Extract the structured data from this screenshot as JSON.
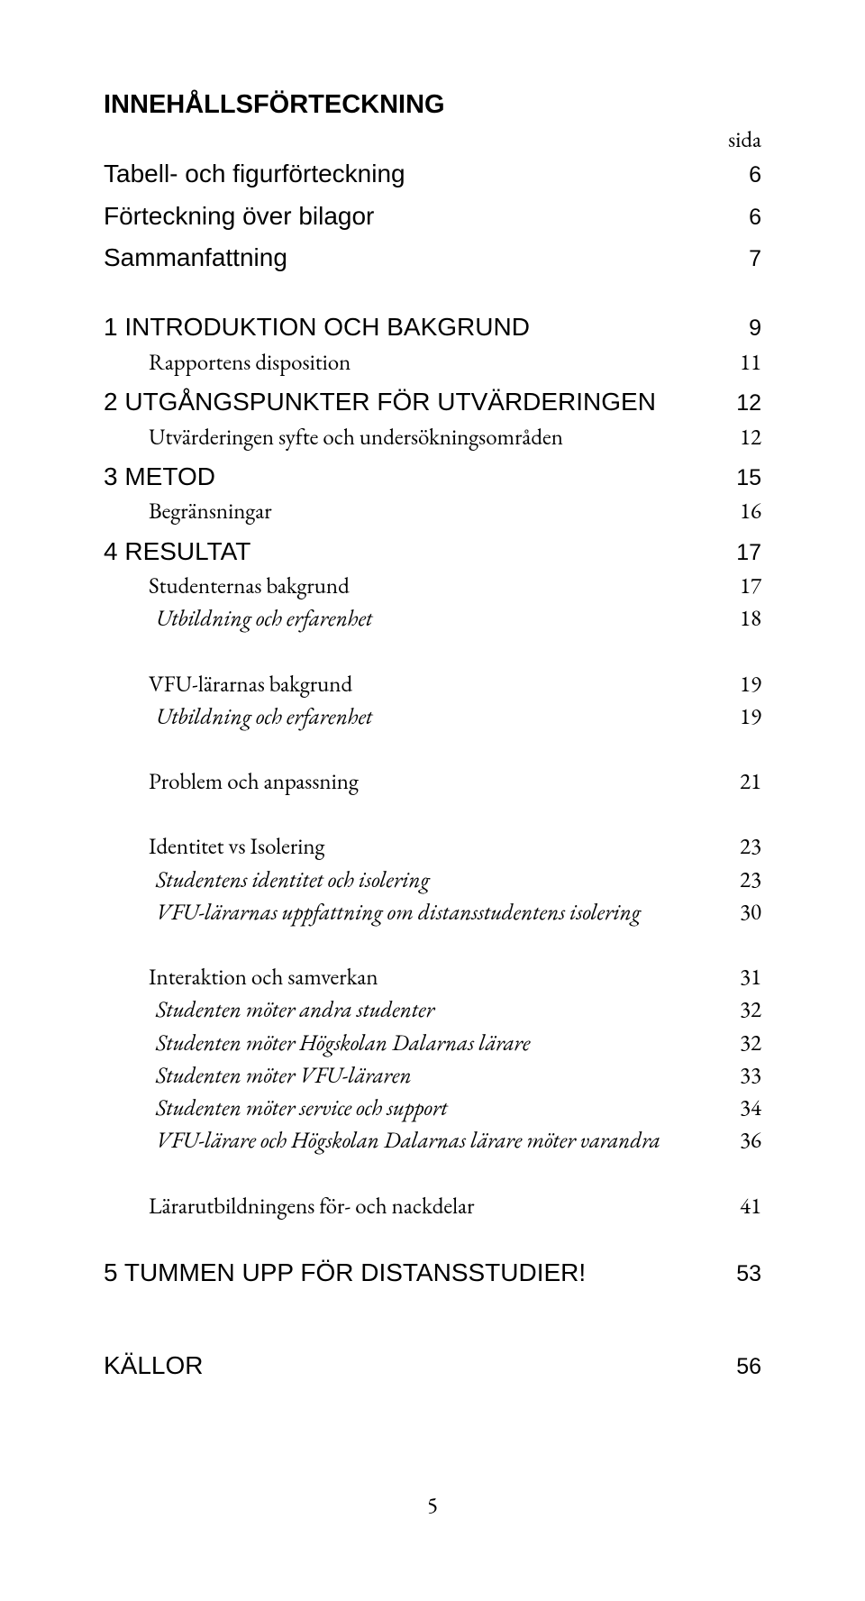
{
  "title": "INNEHÅLLSFÖRTECKNING",
  "sida_label": "sida",
  "toc": {
    "tabell": {
      "label": "Tabell- och figurförteckning",
      "page": "6"
    },
    "bilagor": {
      "label": "Förteckning över bilagor",
      "page": "6"
    },
    "samman": {
      "label": "Sammanfattning",
      "page": "7"
    },
    "s1": {
      "label": "1 INTRODUKTION OCH BAKGRUND",
      "page": "9"
    },
    "s1a": {
      "label": "Rapportens disposition",
      "page": "11"
    },
    "s2": {
      "label": "2 UTGÅNGSPUNKTER FÖR UTVÄRDERINGEN",
      "page": "12"
    },
    "s2a": {
      "label": "Utvärderingen syfte och undersökningsområden",
      "page": "12"
    },
    "s3": {
      "label": "3 METOD",
      "page": "15"
    },
    "s3a": {
      "label": "Begränsningar",
      "page": "16"
    },
    "s4": {
      "label": "4 RESULTAT",
      "page": "17"
    },
    "s4a": {
      "label": "Studenternas bakgrund",
      "page": "17"
    },
    "s4a1": {
      "label": "Utbildning och erfarenhet",
      "page": "18"
    },
    "s4b": {
      "label": "VFU-lärarnas bakgrund",
      "page": "19"
    },
    "s4b1": {
      "label": "Utbildning och erfarenhet",
      "page": "19"
    },
    "s4c": {
      "label": "Problem och anpassning",
      "page": "21"
    },
    "s4d": {
      "label": "Identitet vs Isolering",
      "page": "23"
    },
    "s4d1": {
      "label": "Studentens identitet och isolering",
      "page": "23"
    },
    "s4d2": {
      "label": "VFU-lärarnas uppfattning om distansstudentens isolering",
      "page": "30"
    },
    "s4e": {
      "label": "Interaktion och samverkan",
      "page": "31"
    },
    "s4e1": {
      "label": "Studenten möter andra studenter",
      "page": "32"
    },
    "s4e2": {
      "label": "Studenten möter Högskolan Dalarnas lärare",
      "page": "32"
    },
    "s4e3": {
      "label": "Studenten möter VFU-läraren",
      "page": "33"
    },
    "s4e4": {
      "label": "Studenten möter service och support",
      "page": "34"
    },
    "s4e5": {
      "label": "VFU-lärare och Högskolan Dalarnas lärare möter varandra",
      "page": "36"
    },
    "s4f": {
      "label": "Lärarutbildningens för- och nackdelar",
      "page": "41"
    },
    "s5": {
      "label": "5 TUMMEN UPP FÖR DISTANSSTUDIER!",
      "page": "53"
    },
    "kallor": {
      "label": "KÄLLOR",
      "page": "56"
    }
  },
  "page_number": "5"
}
